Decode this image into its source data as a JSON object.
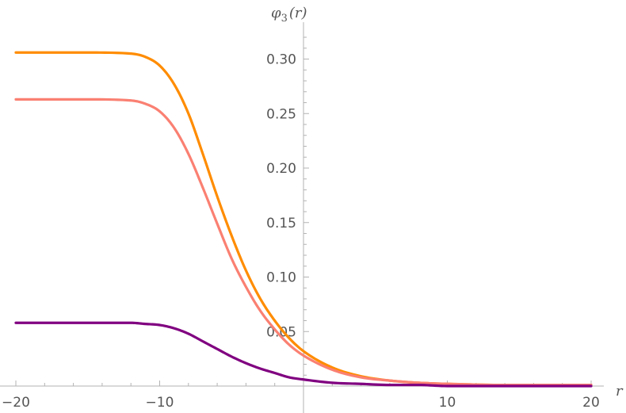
{
  "chart_data": {
    "type": "line",
    "title": "",
    "xlabel": "r",
    "ylabel_main": "φ",
    "ylabel_sub": "3",
    "ylabel_arg": "(r)",
    "xlim": [
      -20,
      20
    ],
    "ylim": [
      0,
      0.32
    ],
    "x_ticks": [
      -20,
      -10,
      10,
      20
    ],
    "x_tick_labels": [
      "−20",
      "−10",
      "10",
      "20"
    ],
    "y_ticks": [
      0.05,
      0.1,
      0.15,
      0.2,
      0.25,
      0.3
    ],
    "y_tick_labels": [
      "0.05",
      "0.10",
      "0.15",
      "0.20",
      "0.25",
      "0.30"
    ],
    "x_minor_step": 2,
    "y_minor_step": 0.01,
    "grid": false,
    "legend": "none",
    "series": [
      {
        "name": "orange",
        "color": "#ff8c00",
        "x": [
          -20,
          -15,
          -12,
          -11,
          -10,
          -9,
          -8,
          -7,
          -6,
          -5,
          -4,
          -3,
          -2,
          -1,
          0,
          2,
          4,
          6,
          8,
          10,
          14,
          20
        ],
        "y": [
          0.306,
          0.306,
          0.305,
          0.302,
          0.294,
          0.277,
          0.25,
          0.213,
          0.174,
          0.138,
          0.106,
          0.08,
          0.06,
          0.044,
          0.032,
          0.017,
          0.009,
          0.005,
          0.003,
          0.002,
          0.001,
          0.001
        ]
      },
      {
        "name": "salmon",
        "color": "#fa8072",
        "x": [
          -20,
          -15,
          -12,
          -11,
          -10,
          -9,
          -8,
          -7,
          -6,
          -5,
          -4,
          -3,
          -2,
          -1,
          0,
          2,
          4,
          6,
          8,
          10,
          14,
          20
        ],
        "y": [
          0.263,
          0.263,
          0.262,
          0.259,
          0.252,
          0.237,
          0.213,
          0.182,
          0.149,
          0.117,
          0.091,
          0.069,
          0.052,
          0.038,
          0.028,
          0.015,
          0.008,
          0.005,
          0.003,
          0.002,
          0.001,
          0.001
        ]
      },
      {
        "name": "purple",
        "color": "#800080",
        "x": [
          -20,
          -15,
          -12,
          -11,
          -10,
          -9,
          -8,
          -7,
          -6,
          -5,
          -4,
          -3,
          -2,
          -1,
          0,
          2,
          4,
          6,
          8,
          10,
          14,
          20
        ],
        "y": [
          0.058,
          0.058,
          0.058,
          0.057,
          0.056,
          0.053,
          0.048,
          0.041,
          0.034,
          0.027,
          0.021,
          0.016,
          0.012,
          0.008,
          0.006,
          0.003,
          0.002,
          0.001,
          0.001,
          0.0,
          0.0,
          0.0
        ]
      }
    ]
  }
}
